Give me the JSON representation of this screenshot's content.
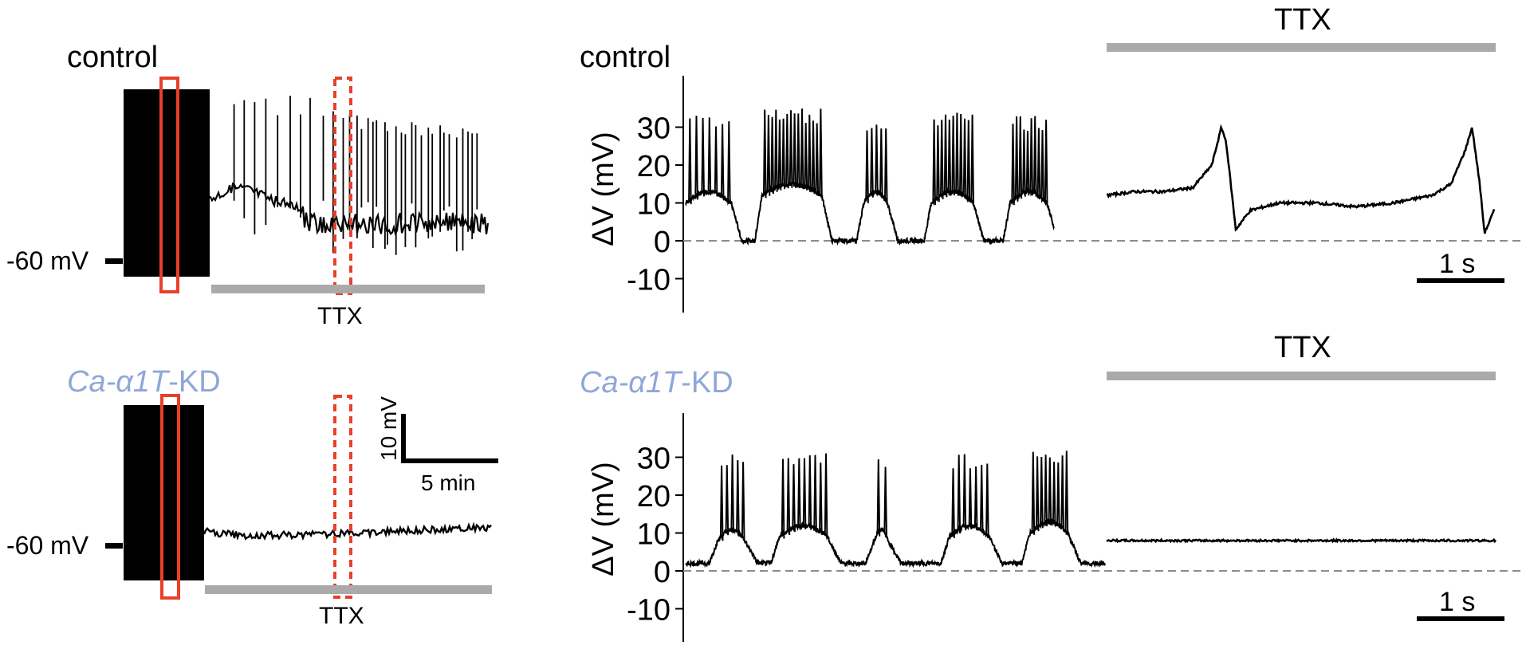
{
  "figure": {
    "top": {
      "left_label": "control",
      "mid_label": "control",
      "rmp_label": "-60 mV",
      "ttx_bar_label": "TTX",
      "ttx_right_label": "TTX",
      "time_scale_label": "1 s"
    },
    "bottom": {
      "left_label_italic": "Ca-α1T",
      "left_label_suffix": "-KD",
      "mid_label_italic": "Ca-α1T",
      "mid_label_suffix": "-KD",
      "rmp_label": "-60 mV",
      "ttx_bar_label": "TTX",
      "ttx_right_label": "TTX",
      "time_scale_label": "1 s",
      "vertical_scale_label": "10 mV",
      "horizontal_scale_label": "5 min"
    }
  },
  "colors": {
    "trace": "#000000",
    "ttx_bar": "#aaaaaa",
    "highlight_box": "#e8402a",
    "kd_label": "#8fa6d8",
    "baseline_dash": "#8c8c8c"
  },
  "chart_data": [
    {
      "type": "line",
      "panel": "top-middle",
      "ylabel": "ΔV (mV)",
      "yticks": [
        30,
        20,
        10,
        0,
        -10
      ],
      "ylim": [
        -15,
        35
      ],
      "baseline": 0,
      "bursts": [
        {
          "start": 0.0,
          "end": 0.52,
          "spikes": 7,
          "peak": 34,
          "plateau": 10
        },
        {
          "start": 0.87,
          "end": 1.55,
          "spikes": 16,
          "peak": 35,
          "plateau": 12
        },
        {
          "start": 2.03,
          "end": 2.3,
          "spikes": 5,
          "peak": 33,
          "plateau": 10
        },
        {
          "start": 2.8,
          "end": 3.28,
          "spikes": 11,
          "peak": 34,
          "plateau": 10
        },
        {
          "start": 3.7,
          "end": 4.12,
          "spikes": 10,
          "peak": 33,
          "plateau": 10
        }
      ],
      "trough": 0
    },
    {
      "type": "line",
      "panel": "top-right",
      "ylim": [
        -15,
        35
      ],
      "series": [
        {
          "x": [
            0,
            0.3,
            0.6,
            0.9,
            1.1,
            1.2,
            1.25,
            1.35,
            1.5,
            1.8,
            2.2,
            2.6,
            3.0,
            3.4,
            3.6,
            3.75,
            3.82,
            3.9,
            3.95,
            4.05
          ],
          "y": [
            12,
            13,
            13,
            14,
            20,
            30,
            26,
            3,
            8,
            10,
            10,
            9,
            10,
            12,
            15,
            24,
            30,
            15,
            2,
            8
          ]
        }
      ]
    },
    {
      "type": "line",
      "panel": "bottom-middle",
      "ylabel": "ΔV (mV)",
      "yticks": [
        30,
        20,
        10,
        0,
        -10
      ],
      "ylim": [
        -15,
        35
      ],
      "baseline": 0,
      "bursts": [
        {
          "start": 0.3,
          "end": 0.55,
          "spikes": 5,
          "peak": 31,
          "plateau": 8
        },
        {
          "start": 0.87,
          "end": 1.32,
          "spikes": 9,
          "peak": 32,
          "plateau": 9
        },
        {
          "start": 1.75,
          "end": 1.88,
          "spikes": 2,
          "peak": 31,
          "plateau": 8
        },
        {
          "start": 2.45,
          "end": 2.82,
          "spikes": 7,
          "peak": 31,
          "plateau": 9
        },
        {
          "start": 3.2,
          "end": 3.55,
          "spikes": 9,
          "peak": 32,
          "plateau": 10
        }
      ],
      "trough": 2
    },
    {
      "type": "line",
      "panel": "bottom-right",
      "ylim": [
        -15,
        35
      ],
      "series": [
        {
          "x": [
            0,
            4
          ],
          "y": [
            8,
            8
          ]
        }
      ]
    }
  ]
}
